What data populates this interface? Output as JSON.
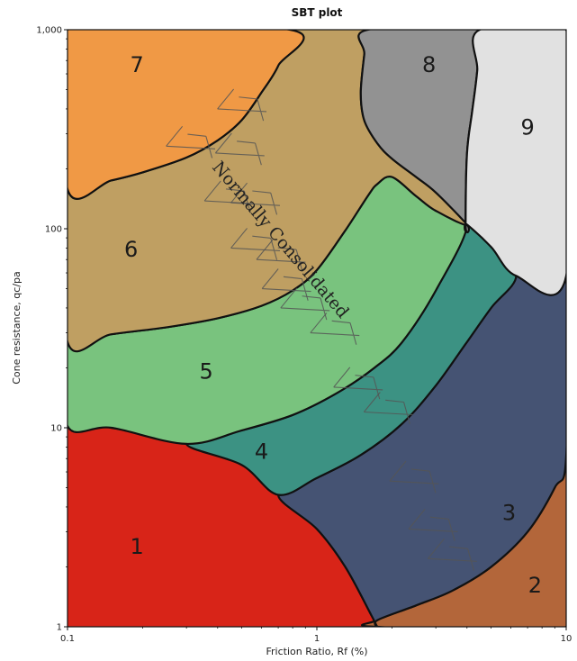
{
  "chart_data": {
    "type": "area",
    "title": "SBT plot",
    "xlabel": "Friction Ratio, Rf (%)",
    "ylabel": "Cone resistance, qc/pa",
    "x_scale": "log",
    "y_scale": "log",
    "xlim": [
      0.1,
      10
    ],
    "ylim": [
      1,
      1000
    ],
    "x_ticks": [
      {
        "value": 0.1,
        "label": "0.1"
      },
      {
        "value": 1,
        "label": "1"
      },
      {
        "value": 10,
        "label": "10"
      }
    ],
    "y_ticks": [
      {
        "value": 1,
        "label": "1"
      },
      {
        "value": 10,
        "label": "10"
      },
      {
        "value": 100,
        "label": "100"
      },
      {
        "value": 1000,
        "label": "1,000"
      }
    ],
    "grid": false,
    "legend": "none",
    "zones": [
      {
        "id": 1,
        "label": "1",
        "color": "#d82418",
        "polygon": [
          [
            0.1,
            1
          ],
          [
            0.1,
            10.2
          ],
          [
            0.15,
            10
          ],
          [
            0.3,
            8.3
          ],
          [
            0.5,
            6.5
          ],
          [
            0.7,
            4.6
          ],
          [
            1,
            3.1
          ],
          [
            1.3,
            2.0
          ],
          [
            1.65,
            1.15
          ],
          [
            1.75,
            1
          ]
        ],
        "label_at": [
          0.19,
          2.5
        ]
      },
      {
        "id": 2,
        "label": "2",
        "color": "#b3663a",
        "polygon": [
          [
            1.75,
            1
          ],
          [
            10,
            1
          ],
          [
            10,
            7.2
          ],
          [
            9,
            5.0
          ],
          [
            7,
            3.0
          ],
          [
            5,
            2.0
          ],
          [
            3.5,
            1.52
          ],
          [
            2.5,
            1.28
          ],
          [
            1.75,
            1.08
          ]
        ],
        "label_at": [
          7.5,
          1.6
        ]
      },
      {
        "id": 3,
        "label": "3",
        "color": "#455373",
        "polygon": [
          [
            0.7,
            4.6
          ],
          [
            1,
            5.6
          ],
          [
            1.5,
            7.3
          ],
          [
            2.2,
            10.5
          ],
          [
            3,
            16.3
          ],
          [
            4,
            27
          ],
          [
            5,
            40
          ],
          [
            6.3,
            58
          ],
          [
            10,
            54
          ],
          [
            10,
            7.2
          ],
          [
            9,
            5.0
          ],
          [
            7,
            3.0
          ],
          [
            5,
            2.0
          ],
          [
            3.5,
            1.52
          ],
          [
            2.5,
            1.28
          ],
          [
            1.75,
            1.08
          ],
          [
            1.75,
            1
          ],
          [
            1.65,
            1.15
          ],
          [
            1.3,
            2.0
          ],
          [
            1,
            3.1
          ]
        ],
        "label_at": [
          5.9,
          3.7
        ]
      },
      {
        "id": 4,
        "label": "4",
        "color": "#3c9283",
        "polygon": [
          [
            0.3,
            8.3
          ],
          [
            0.5,
            9.7
          ],
          [
            0.8,
            11.6
          ],
          [
            1.2,
            14.9
          ],
          [
            1.7,
            20
          ],
          [
            2.2,
            27
          ],
          [
            3,
            49
          ],
          [
            4,
            105
          ],
          [
            5,
            81
          ],
          [
            6.3,
            58
          ],
          [
            5,
            40
          ],
          [
            4,
            27
          ],
          [
            3,
            16.3
          ],
          [
            2.2,
            10.5
          ],
          [
            1.5,
            7.3
          ],
          [
            1,
            5.6
          ],
          [
            0.7,
            4.6
          ],
          [
            0.5,
            6.5
          ]
        ],
        "label_at": [
          0.6,
          7.5
        ]
      },
      {
        "id": 5,
        "label": "5",
        "color": "#79c37e",
        "polygon": [
          [
            0.1,
            27
          ],
          [
            0.15,
            29.5
          ],
          [
            0.25,
            32
          ],
          [
            0.4,
            35.5
          ],
          [
            0.6,
            41
          ],
          [
            0.8,
            49
          ],
          [
            1,
            62
          ],
          [
            1.3,
            98
          ],
          [
            1.6,
            146
          ],
          [
            1.75,
            168
          ],
          [
            2,
            182
          ],
          [
            2.5,
            146
          ],
          [
            3,
            123
          ],
          [
            4,
            105
          ],
          [
            3,
            49
          ],
          [
            2.2,
            27
          ],
          [
            1.7,
            20
          ],
          [
            1.2,
            14.9
          ],
          [
            0.8,
            11.6
          ],
          [
            0.5,
            9.7
          ],
          [
            0.3,
            8.3
          ],
          [
            0.15,
            10
          ],
          [
            0.1,
            10.2
          ]
        ],
        "label_at": [
          0.36,
          19
        ]
      },
      {
        "id": 6,
        "label": "6",
        "color": "#bf9f62",
        "polygon": [
          [
            0.1,
            158
          ],
          [
            0.15,
            175
          ],
          [
            0.2,
            192
          ],
          [
            0.3,
            228
          ],
          [
            0.4,
            278
          ],
          [
            0.5,
            352
          ],
          [
            0.6,
            484
          ],
          [
            0.7,
            660
          ],
          [
            0.78,
            1000
          ],
          [
            1.6,
            1000
          ],
          [
            1.55,
            750
          ],
          [
            1.5,
            480
          ],
          [
            1.55,
            350
          ],
          [
            1.75,
            268
          ],
          [
            2,
            225
          ],
          [
            2.5,
            182
          ],
          [
            3,
            152
          ],
          [
            4,
            105
          ],
          [
            3,
            123
          ],
          [
            2.5,
            146
          ],
          [
            2,
            182
          ],
          [
            1.75,
            168
          ],
          [
            1.6,
            146
          ],
          [
            1.3,
            98
          ],
          [
            1,
            62
          ],
          [
            0.8,
            49
          ],
          [
            0.6,
            41
          ],
          [
            0.4,
            35.5
          ],
          [
            0.25,
            32
          ],
          [
            0.15,
            29.5
          ],
          [
            0.1,
            27
          ]
        ],
        "label_at": [
          0.18,
          78
        ]
      },
      {
        "id": 7,
        "label": "7",
        "color": "#f09945",
        "polygon": [
          [
            0.1,
            1000
          ],
          [
            0.78,
            1000
          ],
          [
            0.7,
            660
          ],
          [
            0.6,
            484
          ],
          [
            0.5,
            352
          ],
          [
            0.4,
            278
          ],
          [
            0.3,
            228
          ],
          [
            0.2,
            192
          ],
          [
            0.15,
            175
          ],
          [
            0.1,
            158
          ]
        ],
        "label_at": [
          0.19,
          660
        ]
      },
      {
        "id": 8,
        "label": "8",
        "color": "#929292",
        "polygon": [
          [
            1.6,
            1000
          ],
          [
            4.5,
            1000
          ],
          [
            4.4,
            625
          ],
          [
            4.2,
            390
          ],
          [
            4.0,
            238
          ],
          [
            3.95,
            103
          ],
          [
            4,
            105
          ],
          [
            3,
            152
          ],
          [
            2.5,
            182
          ],
          [
            2,
            225
          ],
          [
            1.75,
            268
          ],
          [
            1.55,
            350
          ],
          [
            1.5,
            480
          ],
          [
            1.55,
            750
          ]
        ],
        "label_at": [
          2.82,
          660
        ]
      },
      {
        "id": 9,
        "label": "9",
        "color": "#e1e1e1",
        "polygon": [
          [
            4.5,
            1000
          ],
          [
            10,
            1000
          ],
          [
            10,
            58
          ],
          [
            6.3,
            58
          ],
          [
            5,
            81
          ],
          [
            4,
            105
          ],
          [
            3.95,
            103
          ],
          [
            4.0,
            238
          ],
          [
            4.2,
            390
          ],
          [
            4.4,
            625
          ]
        ],
        "label_at": [
          7.0,
          320
        ]
      }
    ],
    "annotations": [
      {
        "text": "Normally Consolidated"
      }
    ]
  }
}
